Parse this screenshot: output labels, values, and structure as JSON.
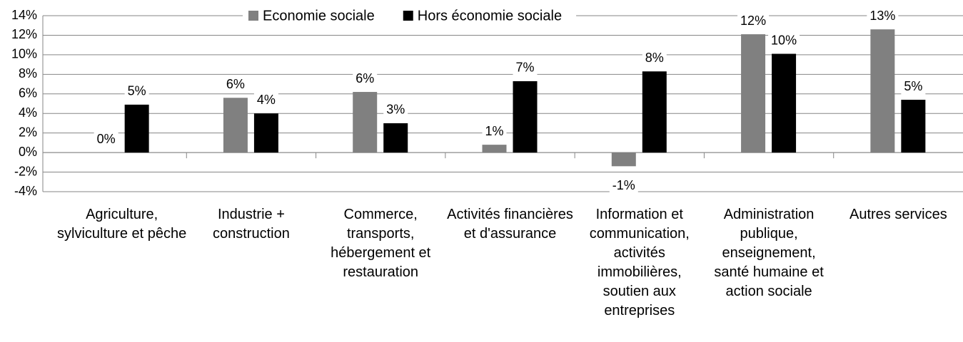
{
  "chart_data": {
    "type": "bar",
    "categories": [
      "Agriculture, sylviculture et pêche",
      "Industrie + construction",
      "Commerce, transports, hébergement et restauration",
      "Activités financières et d'assurance",
      "Information et communication, activités immobilières, soutien aux entreprises",
      "Administration publique, enseignement, santé humaine et action sociale",
      "Autres services"
    ],
    "series": [
      {
        "name": "Economie sociale",
        "color": "#808080",
        "values": [
          0,
          5.6,
          6.2,
          0.8,
          -1.4,
          12.1,
          12.6
        ],
        "value_labels": [
          "0%",
          "6%",
          "6%",
          "1%",
          "-1%",
          "12%",
          "13%"
        ]
      },
      {
        "name": "Hors économie sociale",
        "color": "#000000",
        "values": [
          4.9,
          4.0,
          3.0,
          7.3,
          8.3,
          10.1,
          5.4
        ],
        "value_labels": [
          "5%",
          "4%",
          "3%",
          "7%",
          "8%",
          "10%",
          "5%"
        ]
      }
    ],
    "ylim": [
      -4,
      14
    ],
    "yticks": [
      {
        "value": -4,
        "label": "-4%"
      },
      {
        "value": -2,
        "label": "-2%"
      },
      {
        "value": 0,
        "label": "0%"
      },
      {
        "value": 2,
        "label": "2%"
      },
      {
        "value": 4,
        "label": "4%"
      },
      {
        "value": 6,
        "label": "6%"
      },
      {
        "value": 8,
        "label": "8%"
      },
      {
        "value": 10,
        "label": "10%"
      },
      {
        "value": 12,
        "label": "12%"
      },
      {
        "value": 14,
        "label": "14%"
      }
    ],
    "grid": true,
    "legend": "top"
  }
}
